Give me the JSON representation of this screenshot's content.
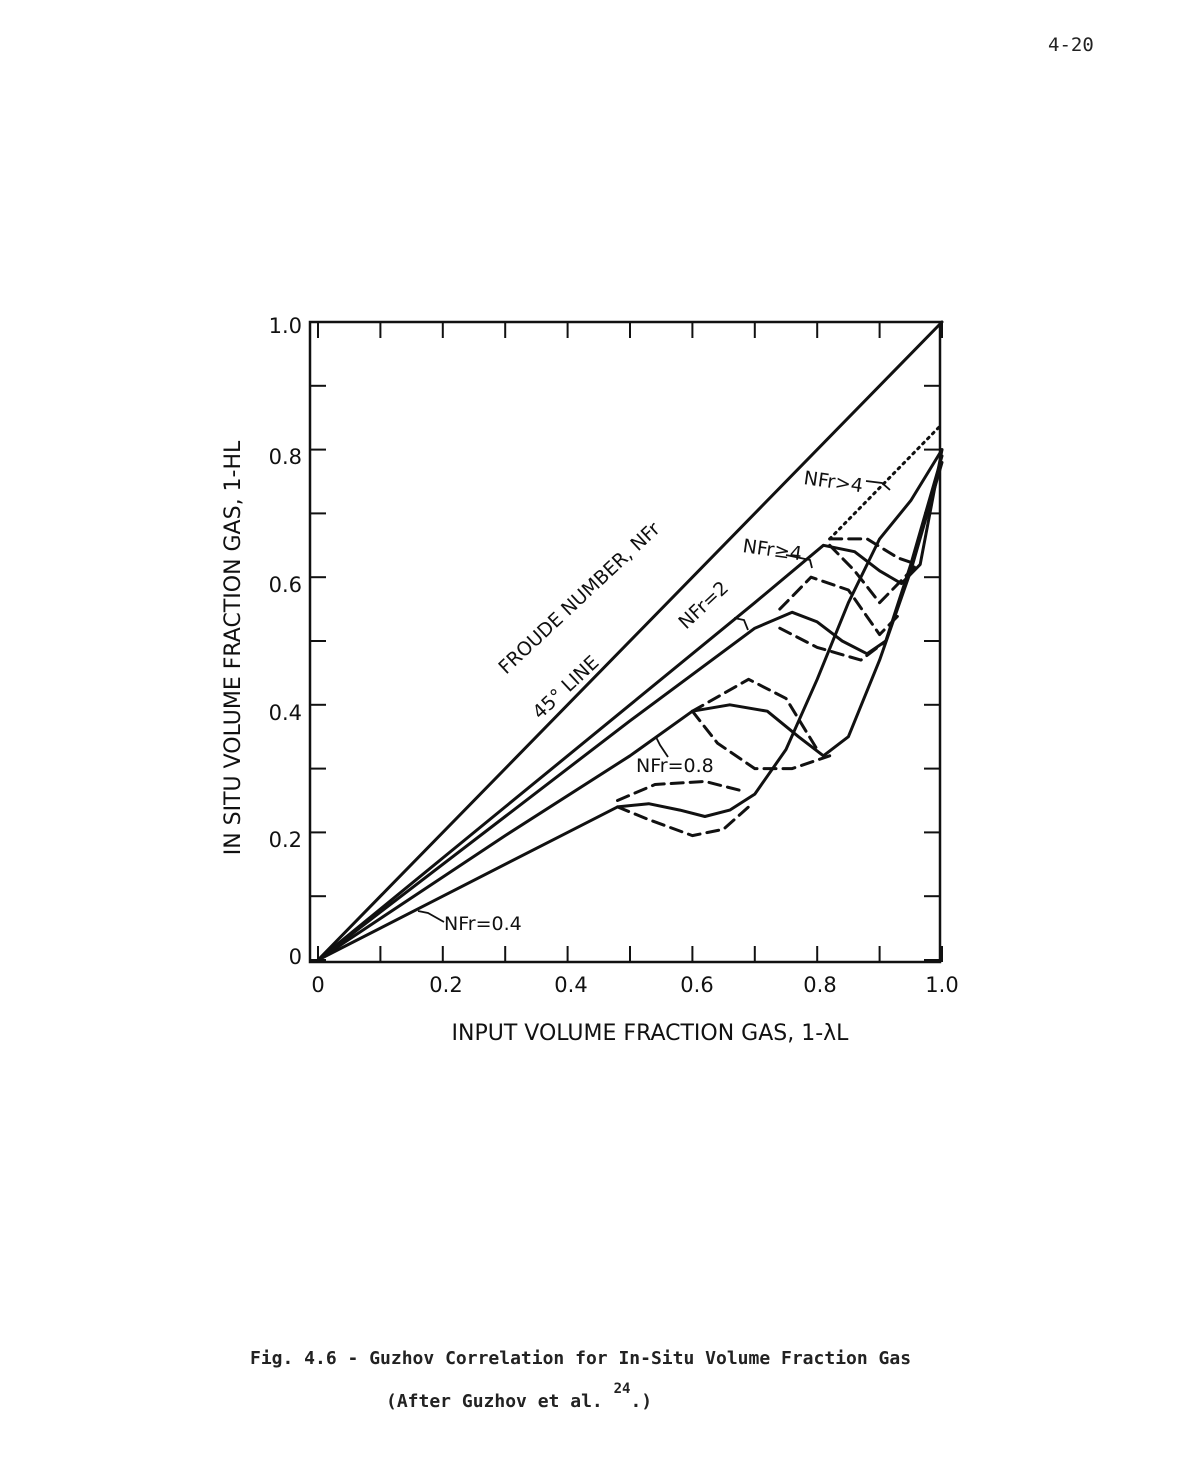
{
  "page_number": "4-20",
  "caption": {
    "line1": "Fig. 4.6 - Guzhov Correlation for In-Situ Volume Fraction Gas",
    "line2_prefix": "(After Guzhov et al. ",
    "line2_ref": "24",
    "line2_suffix": ".)"
  },
  "colors": {
    "ink": "#111111",
    "background": "#ffffff"
  },
  "chart_data": {
    "type": "line",
    "xlabel": "INPUT VOLUME FRACTION GAS, 1-λL",
    "ylabel": "IN SITU VOLUME FRACTION GAS, 1-HL",
    "xlim": [
      0,
      1.0
    ],
    "ylim": [
      0,
      1.0
    ],
    "x_ticks": [
      "0",
      "0.2",
      "0.4",
      "0.6",
      "0.8",
      "1.0"
    ],
    "y_ticks": [
      "0",
      "0.2",
      "0.4",
      "0.6",
      "0.8",
      "1.0"
    ],
    "annotations": {
      "froude": "FROUDE NUMBER, NFr",
      "line45": "45° LINE",
      "nfr_gt4": "NFr>4",
      "nfr_ge4": "NFr≥4",
      "nfr_2": "NFr=2",
      "nfr_08": "NFr=0.8",
      "nfr_04": "NFr=0.4"
    },
    "series": [
      {
        "name": "45° LINE",
        "style": "solid",
        "points": [
          [
            0,
            0
          ],
          [
            1.0,
            1.0
          ]
        ]
      },
      {
        "name": "NFr>4",
        "style": "dotted",
        "points": [
          [
            0.82,
            0.66
          ],
          [
            1.0,
            0.84
          ]
        ]
      },
      {
        "name": "NFr≥4",
        "style": "solid",
        "points": [
          [
            0,
            0
          ],
          [
            0.1,
            0.08
          ],
          [
            0.3,
            0.24
          ],
          [
            0.5,
            0.4
          ],
          [
            0.7,
            0.56
          ],
          [
            0.81,
            0.65
          ],
          [
            0.86,
            0.64
          ],
          [
            0.9,
            0.61
          ],
          [
            0.935,
            0.59
          ],
          [
            0.965,
            0.62
          ],
          [
            1.0,
            0.8
          ]
        ]
      },
      {
        "name": "NFr≥4 upper",
        "style": "dashed",
        "points": [
          [
            0.82,
            0.66
          ],
          [
            0.88,
            0.66
          ],
          [
            0.93,
            0.63
          ],
          [
            0.96,
            0.62
          ]
        ]
      },
      {
        "name": "NFr≥4 lower",
        "style": "dashed",
        "points": [
          [
            0.82,
            0.65
          ],
          [
            0.86,
            0.61
          ],
          [
            0.9,
            0.56
          ],
          [
            0.93,
            0.59
          ],
          [
            0.96,
            0.62
          ]
        ]
      },
      {
        "name": "NFr=2",
        "style": "solid",
        "points": [
          [
            0,
            0
          ],
          [
            0.1,
            0.075
          ],
          [
            0.3,
            0.225
          ],
          [
            0.5,
            0.375
          ],
          [
            0.7,
            0.52
          ],
          [
            0.76,
            0.545
          ],
          [
            0.8,
            0.53
          ],
          [
            0.84,
            0.5
          ],
          [
            0.88,
            0.48
          ],
          [
            0.91,
            0.5
          ],
          [
            0.95,
            0.62
          ],
          [
            1.0,
            0.79
          ]
        ]
      },
      {
        "name": "NFr=2 upper",
        "style": "dashed",
        "points": [
          [
            0.74,
            0.55
          ],
          [
            0.79,
            0.6
          ],
          [
            0.85,
            0.58
          ],
          [
            0.9,
            0.51
          ],
          [
            0.93,
            0.54
          ]
        ]
      },
      {
        "name": "NFr=2 lower",
        "style": "dashed",
        "points": [
          [
            0.74,
            0.52
          ],
          [
            0.8,
            0.49
          ],
          [
            0.87,
            0.47
          ],
          [
            0.91,
            0.5
          ]
        ]
      },
      {
        "name": "NFr=0.8",
        "style": "solid",
        "points": [
          [
            0,
            0
          ],
          [
            0.1,
            0.065
          ],
          [
            0.3,
            0.195
          ],
          [
            0.5,
            0.32
          ],
          [
            0.6,
            0.39
          ],
          [
            0.66,
            0.4
          ],
          [
            0.72,
            0.39
          ],
          [
            0.77,
            0.35
          ],
          [
            0.81,
            0.32
          ],
          [
            0.85,
            0.35
          ],
          [
            0.9,
            0.47
          ],
          [
            0.95,
            0.61
          ],
          [
            1.0,
            0.78
          ]
        ]
      },
      {
        "name": "NFr=0.8 upper",
        "style": "dashed",
        "points": [
          [
            0.6,
            0.39
          ],
          [
            0.69,
            0.44
          ],
          [
            0.75,
            0.41
          ],
          [
            0.8,
            0.33
          ]
        ]
      },
      {
        "name": "NFr=0.8 lower",
        "style": "dashed",
        "points": [
          [
            0.6,
            0.39
          ],
          [
            0.64,
            0.34
          ],
          [
            0.7,
            0.3
          ],
          [
            0.76,
            0.3
          ],
          [
            0.82,
            0.32
          ]
        ]
      },
      {
        "name": "NFr=0.4",
        "style": "solid",
        "points": [
          [
            0,
            0
          ],
          [
            0.2,
            0.1
          ],
          [
            0.4,
            0.2
          ],
          [
            0.48,
            0.24
          ],
          [
            0.53,
            0.245
          ],
          [
            0.58,
            0.235
          ],
          [
            0.62,
            0.225
          ],
          [
            0.66,
            0.235
          ],
          [
            0.7,
            0.26
          ],
          [
            0.75,
            0.33
          ],
          [
            0.8,
            0.44
          ],
          [
            0.85,
            0.56
          ],
          [
            0.9,
            0.66
          ],
          [
            0.95,
            0.72
          ],
          [
            1.0,
            0.8
          ]
        ]
      },
      {
        "name": "NFr=0.4 upper",
        "style": "dashed",
        "points": [
          [
            0.48,
            0.25
          ],
          [
            0.54,
            0.275
          ],
          [
            0.62,
            0.28
          ],
          [
            0.68,
            0.265
          ]
        ]
      },
      {
        "name": "NFr=0.4 lower",
        "style": "dashed",
        "points": [
          [
            0.48,
            0.24
          ],
          [
            0.53,
            0.22
          ],
          [
            0.6,
            0.195
          ],
          [
            0.65,
            0.205
          ],
          [
            0.69,
            0.24
          ]
        ]
      }
    ],
    "grid": false,
    "legend": "none"
  }
}
